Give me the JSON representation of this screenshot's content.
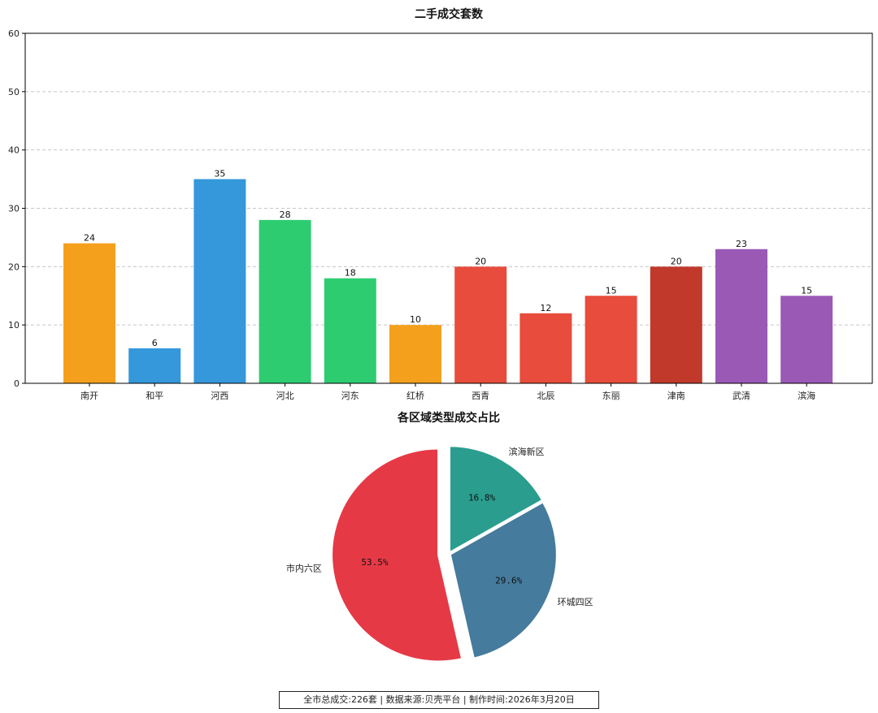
{
  "chart_data": [
    {
      "type": "bar",
      "title": "二手成交套数",
      "categories": [
        "南开",
        "和平",
        "河西",
        "河北",
        "河东",
        "红桥",
        "西青",
        "北辰",
        "东丽",
        "津南",
        "武清",
        "滨海"
      ],
      "values": [
        24,
        6,
        35,
        28,
        18,
        10,
        20,
        12,
        15,
        20,
        23,
        15
      ],
      "colors": [
        "#f5a01d",
        "#3498db",
        "#3498db",
        "#2ecc71",
        "#2ecc71",
        "#f5a01d",
        "#e74c3c",
        "#e74c3c",
        "#e74c3c",
        "#c0392b",
        "#9b59b6",
        "#9b59b6"
      ],
      "ylim": [
        0,
        60
      ],
      "yticks": [
        0,
        10,
        20,
        30,
        40,
        50,
        60
      ],
      "grid": "y-dashed",
      "xlabel": "",
      "ylabel": ""
    },
    {
      "type": "pie",
      "title": "各区域类型成交占比",
      "slices": [
        {
          "label": "滨海新区",
          "value": 16.8,
          "pct_label": "16.8%",
          "color": "#2a9d8f",
          "explode": false
        },
        {
          "label": "环城四区",
          "value": 29.6,
          "pct_label": "29.6%",
          "color": "#457b9d",
          "explode": false
        },
        {
          "label": "市内六区",
          "value": 53.5,
          "pct_label": "53.5%",
          "color": "#e63946",
          "explode": true
        }
      ]
    }
  ],
  "footer": "全市总成交:226套 | 数据来源:贝壳平台 | 制作时间:2026年3月20日"
}
